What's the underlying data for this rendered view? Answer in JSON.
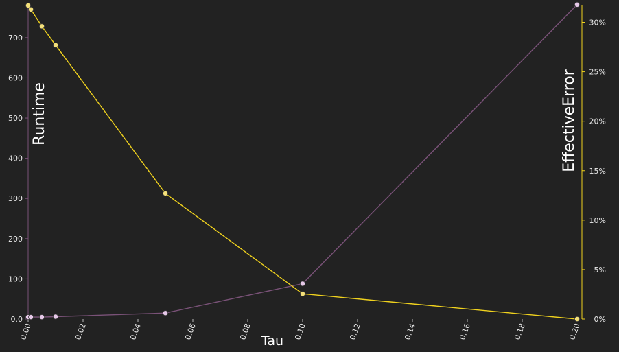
{
  "chart_data": {
    "type": "line",
    "xlabel": "Tau",
    "ylabel_left": "Runtime",
    "ylabel_right": "EffectiveError",
    "x_ticks": [
      "0.00",
      "0.02",
      "0.04",
      "0.06",
      "0.08",
      "0.10",
      "0.12",
      "0.14",
      "0.16",
      "0.18",
      "0.20"
    ],
    "y_left_ticks": [
      "0.0",
      "100",
      "200",
      "300",
      "400",
      "500",
      "600",
      "700"
    ],
    "y_right_ticks": [
      "0%",
      "5%",
      "10%",
      "15%",
      "20%",
      "25%",
      "30%"
    ],
    "xlim": [
      0,
      0.2
    ],
    "ylim_left": [
      0,
      780
    ],
    "ylim_right": [
      0,
      0.317
    ],
    "grid": false,
    "series": [
      {
        "axis": "left",
        "color": "#7a5278",
        "marker_fill": "#e6c8e8",
        "x": [
          0.0,
          0.001,
          0.005,
          0.01,
          0.05,
          0.1,
          0.2
        ],
        "values": [
          5,
          5,
          5,
          6,
          15,
          88,
          782
        ]
      },
      {
        "axis": "right",
        "color": "#f0d21e",
        "marker_fill": "#f4e07a",
        "x": [
          0.0,
          0.001,
          0.005,
          0.01,
          0.05,
          0.1,
          0.2
        ],
        "values": [
          0.317,
          0.313,
          0.296,
          0.277,
          0.127,
          0.0255,
          0.0
        ]
      }
    ]
  }
}
